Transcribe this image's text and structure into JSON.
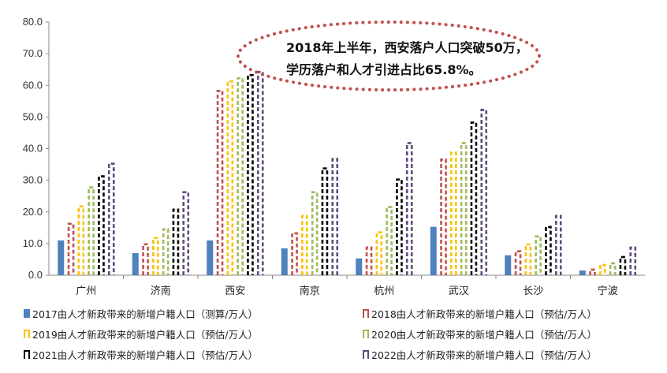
{
  "chart_data": {
    "type": "bar",
    "categories": [
      "广州",
      "济南",
      "西安",
      "南京",
      "杭州",
      "武汉",
      "长沙",
      "宁波"
    ],
    "ylim": [
      0,
      80
    ],
    "yticks": [
      "0.0",
      "10.0",
      "20.0",
      "30.0",
      "40.0",
      "50.0",
      "60.0",
      "70.0",
      "80.0"
    ],
    "series": [
      {
        "name": "2017由人才新政带来的新增户籍人口（测算/万人）",
        "color": "#4F81BD",
        "style": "solid",
        "values": [
          11.0,
          7.0,
          11.0,
          8.5,
          5.3,
          15.3,
          6.3,
          1.5
        ]
      },
      {
        "name": "2018由人才新政带来的新增户籍人口（预估/万人）",
        "color": "#C0504D",
        "style": "dashed",
        "values": [
          16.5,
          10.0,
          58.5,
          13.5,
          9.0,
          36.8,
          7.8,
          2.0
        ]
      },
      {
        "name": "2019由人才新政带来的新增户籍人口（预估/万人）",
        "color": "#FFC000",
        "style": "dashed",
        "values": [
          22.0,
          12.0,
          61.5,
          19.0,
          13.8,
          39.0,
          10.0,
          3.5
        ]
      },
      {
        "name": "2020由人才新政带来的新增户籍人口（预估/万人）",
        "color": "#9BBB59",
        "style": "dashed",
        "values": [
          28.0,
          14.8,
          62.5,
          26.5,
          21.8,
          42.0,
          12.5,
          4.0
        ]
      },
      {
        "name": "2021由人才新政带来的新增户籍人口（预估/万人）",
        "color": "#000000",
        "style": "dashed",
        "values": [
          31.5,
          21.0,
          63.5,
          34.0,
          30.5,
          48.5,
          15.5,
          6.0
        ]
      },
      {
        "name": "2022由人才新政带来的新增户籍人口（预估/万人）",
        "color": "#604A7B",
        "style": "dashed",
        "values": [
          35.5,
          26.5,
          64.5,
          37.0,
          42.0,
          52.5,
          19.0,
          9.0
        ]
      }
    ],
    "annotation": {
      "line1": "2018年上半年，西安落户人口突破50万，",
      "line2": "学历落户和人才引进占比65.8%。"
    },
    "legend_position": "bottom"
  }
}
